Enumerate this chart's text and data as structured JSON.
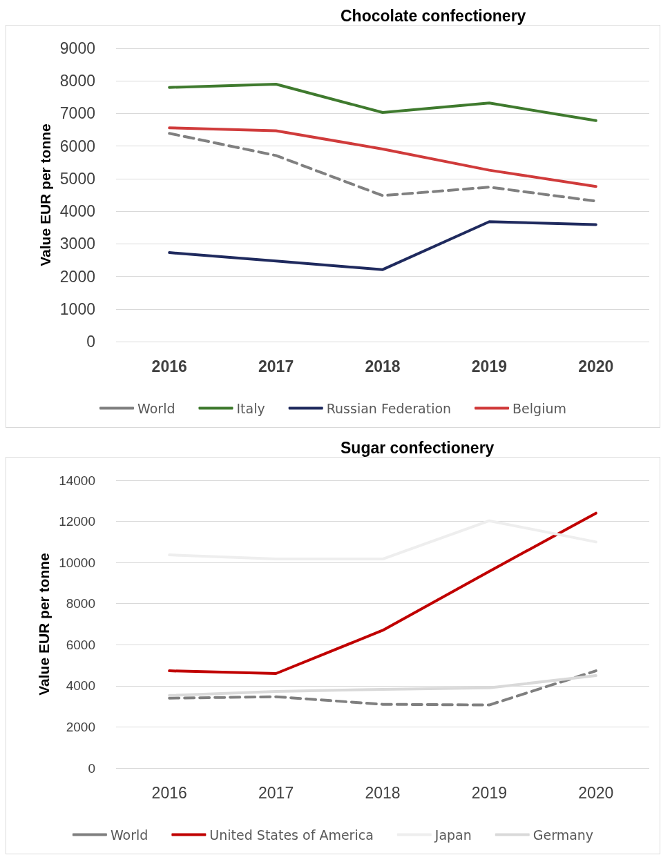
{
  "chart_data": [
    {
      "type": "line",
      "title": "Chocolate confectionery",
      "ylabel": "Value EUR per tonne",
      "categories": [
        "2016",
        "2017",
        "2018",
        "2019",
        "2020"
      ],
      "ylim": [
        0,
        9000
      ],
      "yticks": [
        0,
        1000,
        2000,
        3000,
        4000,
        5000,
        6000,
        7000,
        8000,
        9000
      ],
      "grid": "y",
      "legend": "bottom",
      "marker": "none",
      "series": [
        {
          "name": "World",
          "color": "#808080",
          "line_style": "dashed",
          "values": [
            6390,
            5710,
            4480,
            4740,
            4310
          ]
        },
        {
          "name": "Italy",
          "color": "#3f7a2e",
          "line_style": "solid",
          "values": [
            7800,
            7900,
            7030,
            7320,
            6780
          ]
        },
        {
          "name": "Russian Federation",
          "color": "#1f2a5e",
          "line_style": "solid",
          "values": [
            2730,
            2470,
            2210,
            3680,
            3590
          ]
        },
        {
          "name": "Belgium",
          "color": "#d03b3b",
          "line_style": "solid",
          "values": [
            6560,
            6470,
            5910,
            5260,
            4760
          ]
        }
      ]
    },
    {
      "type": "line",
      "title": "Sugar confectionery",
      "ylabel": "Value EUR per tonne",
      "categories": [
        "2016",
        "2017",
        "2018",
        "2019",
        "2020"
      ],
      "ylim": [
        0,
        14000
      ],
      "yticks": [
        0,
        2000,
        4000,
        6000,
        8000,
        10000,
        12000,
        14000
      ],
      "grid": "y",
      "legend": "bottom",
      "marker": "none",
      "series": [
        {
          "name": "World",
          "color": "#7f7f7f",
          "line_style": "dashed",
          "values": [
            3400,
            3470,
            3100,
            3070,
            4730
          ]
        },
        {
          "name": "United States of America",
          "color": "#c00000",
          "line_style": "solid",
          "values": [
            4730,
            4600,
            6700,
            9570,
            12400
          ]
        },
        {
          "name": "Japan",
          "color": "#eeeeee",
          "line_style": "solid",
          "values": [
            10370,
            10170,
            10170,
            12030,
            11000
          ]
        },
        {
          "name": "Germany",
          "color": "#d9d9d9",
          "line_style": "solid",
          "values": [
            3530,
            3730,
            3830,
            3900,
            4500
          ]
        }
      ]
    }
  ]
}
